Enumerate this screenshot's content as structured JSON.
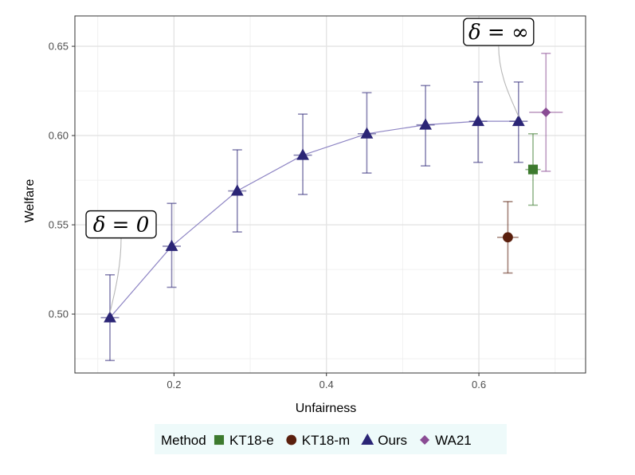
{
  "chart_data": {
    "type": "scatter",
    "title": "",
    "xlabel": "Unfairness",
    "ylabel": "Welfare",
    "xlim": [
      0.07,
      0.74
    ],
    "ylim": [
      0.467,
      0.667
    ],
    "x_ticks": [
      0.2,
      0.4,
      0.6
    ],
    "x_tick_labels": [
      "0.2",
      "0.4",
      "0.6"
    ],
    "y_ticks": [
      0.5,
      0.55,
      0.6,
      0.65
    ],
    "y_tick_labels": [
      "0.50",
      "0.55",
      "0.60",
      "0.65"
    ],
    "grid": true,
    "legend": {
      "title": "Method",
      "position": "bottom"
    },
    "series": [
      {
        "name": "KT18-e",
        "marker": "square",
        "color": "#3d7a2e",
        "connected": false,
        "points": [
          {
            "x": 0.671,
            "y": 0.581,
            "y_lo": 0.561,
            "y_hi": 0.601,
            "x_lo": 0.661,
            "x_hi": 0.681
          }
        ]
      },
      {
        "name": "KT18-m",
        "marker": "circle",
        "color": "#5a1f0d",
        "connected": false,
        "points": [
          {
            "x": 0.638,
            "y": 0.543,
            "y_lo": 0.523,
            "y_hi": 0.563,
            "x_lo": 0.624,
            "x_hi": 0.652
          }
        ]
      },
      {
        "name": "Ours",
        "marker": "triangle",
        "color": "#2b2576",
        "line_color": "#8e85c4",
        "connected": true,
        "points": [
          {
            "x": 0.116,
            "y": 0.498,
            "y_lo": 0.474,
            "y_hi": 0.522,
            "x_lo": 0.104,
            "x_hi": 0.128
          },
          {
            "x": 0.197,
            "y": 0.538,
            "y_lo": 0.515,
            "y_hi": 0.562,
            "x_lo": 0.185,
            "x_hi": 0.209
          },
          {
            "x": 0.283,
            "y": 0.569,
            "y_lo": 0.546,
            "y_hi": 0.592,
            "x_lo": 0.271,
            "x_hi": 0.295
          },
          {
            "x": 0.369,
            "y": 0.589,
            "y_lo": 0.567,
            "y_hi": 0.612,
            "x_lo": 0.357,
            "x_hi": 0.381
          },
          {
            "x": 0.453,
            "y": 0.601,
            "y_lo": 0.579,
            "y_hi": 0.624,
            "x_lo": 0.441,
            "x_hi": 0.465
          },
          {
            "x": 0.53,
            "y": 0.606,
            "y_lo": 0.583,
            "y_hi": 0.628,
            "x_lo": 0.518,
            "x_hi": 0.542
          },
          {
            "x": 0.599,
            "y": 0.608,
            "y_lo": 0.585,
            "y_hi": 0.63,
            "x_lo": 0.587,
            "x_hi": 0.611
          },
          {
            "x": 0.652,
            "y": 0.608,
            "y_lo": 0.585,
            "y_hi": 0.63,
            "x_lo": 0.64,
            "x_hi": 0.664
          }
        ]
      },
      {
        "name": "WA21",
        "marker": "diamond",
        "color": "#8a4c94",
        "connected": false,
        "points": [
          {
            "x": 0.688,
            "y": 0.613,
            "y_lo": 0.58,
            "y_hi": 0.646,
            "x_lo": 0.666,
            "x_hi": 0.71
          }
        ]
      }
    ],
    "annotations": [
      {
        "text": "δ = 0",
        "target": {
          "x": 0.116,
          "y": 0.498
        }
      },
      {
        "text": "δ = ∞",
        "target": {
          "x": 0.652,
          "y": 0.608
        }
      }
    ]
  }
}
